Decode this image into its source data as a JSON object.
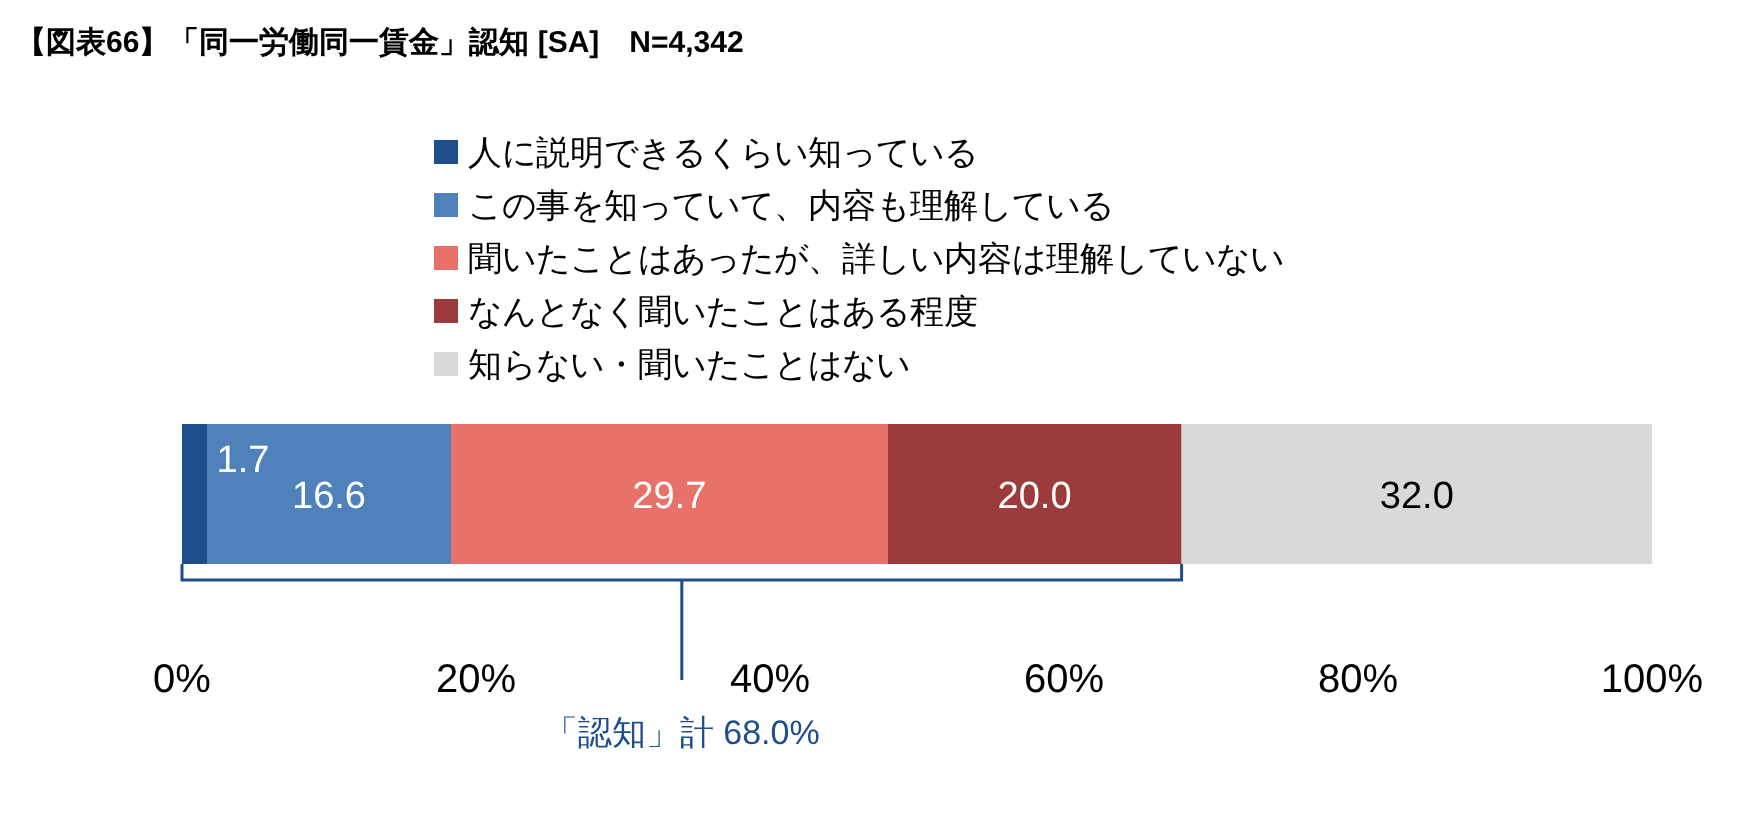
{
  "chart_data": {
    "type": "bar",
    "orientation": "horizontal",
    "stacked": true,
    "title": "【図表66】「同一労働同一賃金」認知 [SA]　N=4,342",
    "categories": [
      null
    ],
    "series": [
      {
        "name": "人に説明できるくらい知っている",
        "color": "#1f4e8c",
        "values": [
          1.7
        ],
        "value_labels": [
          "1.7"
        ]
      },
      {
        "name": "この事を知っていて、内容も理解している",
        "color": "#4f81bd",
        "values": [
          16.6
        ],
        "value_labels": [
          "16.6"
        ]
      },
      {
        "name": "聞いたことはあったが、詳しい内容は理解していない",
        "color": "#e8726a",
        "values": [
          29.7
        ],
        "value_labels": [
          "29.7"
        ]
      },
      {
        "name": "なんとなく聞いたことはある程度",
        "color": "#9b3b3b",
        "values": [
          20.0
        ],
        "value_labels": [
          "20.0"
        ]
      },
      {
        "name": "知らない・聞いたことはない",
        "color": "#d9d9d9",
        "values": [
          32.0
        ],
        "value_labels": [
          "32.0"
        ]
      }
    ],
    "xlim": [
      0,
      100
    ],
    "xticks": [
      {
        "value": 0,
        "label": "0%"
      },
      {
        "value": 20,
        "label": "20%"
      },
      {
        "value": 40,
        "label": "40%"
      },
      {
        "value": 60,
        "label": "60%"
      },
      {
        "value": 80,
        "label": "80%"
      },
      {
        "value": 100,
        "label": "100%"
      }
    ],
    "annotations": [
      "「認知」計 68.0%"
    ],
    "legend": "top"
  }
}
